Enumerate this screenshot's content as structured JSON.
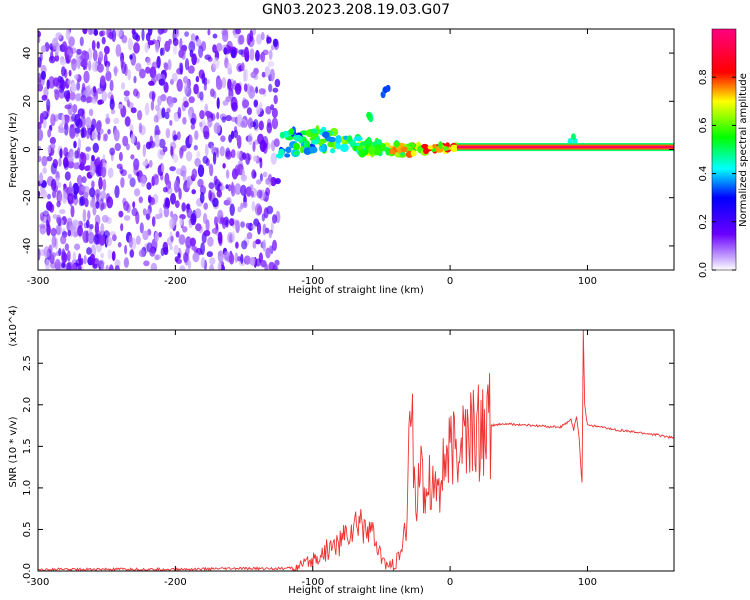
{
  "figure": {
    "title": "GN03.2023.208.19.03.G07"
  },
  "chart_data": [
    {
      "type": "heatmap",
      "xlabel": "Height of straight line (km)",
      "ylabel": "Frequency (Hz)",
      "xlim": [
        -300,
        163
      ],
      "ylim": [
        -50,
        50
      ],
      "xticks": [
        -300,
        -200,
        -100,
        0,
        100
      ],
      "yticks": [
        -40,
        -20,
        0,
        20,
        40
      ],
      "grid": false,
      "colorbar": {
        "label": "Normalized spectral amplitude",
        "range": [
          0,
          1
        ],
        "ticks": [
          "0.0",
          "0.2",
          "0.4",
          "0.6",
          "0.8"
        ],
        "colormap": "rainbow (violet-blue-cyan-green-yellow-red-magenta)"
      },
      "regions": [
        {
          "x": [
            -300,
            -125
          ],
          "description_level": 0.15,
          "character": "broadband noise, scattered speckles"
        },
        {
          "x": [
            -125,
            5
          ],
          "freq_center": [
            -5,
            8
          ],
          "level": 0.4
        },
        {
          "x": [
            5,
            163
          ],
          "freq_center": 1,
          "level": 0.95
        }
      ],
      "features": [
        {
          "x": -60,
          "freq": 15,
          "level": 0.45
        },
        {
          "x": -48,
          "freq": 23,
          "level": 0.3
        },
        {
          "x": 88,
          "freq": 3,
          "level": 0.4
        }
      ]
    },
    {
      "type": "line",
      "xlabel": "Height of straight line (km)",
      "ylabel": "SNR (10 * v/v)",
      "y_multiplier": "(x10^4)",
      "xlim": [
        -300,
        163
      ],
      "ylim": [
        0,
        2.9
      ],
      "xticks": [
        -300,
        -200,
        -100,
        0,
        100
      ],
      "yticks": [
        "0.0",
        "0.5",
        "1.0",
        "1.5",
        "2.0",
        "2.5"
      ],
      "color": "#ee3333",
      "grid": false,
      "series": [
        {
          "x": [
            -300,
            -250,
            -200,
            -150,
            -120,
            -110,
            -100,
            -90,
            -80,
            -75,
            -70,
            -65,
            -60,
            -55,
            -50,
            -45,
            -40,
            -35,
            -32,
            -30,
            -28,
            -26,
            -25,
            -23,
            -20,
            -15,
            -10,
            -5,
            0,
            5,
            10,
            15,
            20,
            25,
            30,
            40,
            50,
            60,
            70,
            80,
            85,
            88,
            90,
            92,
            94,
            95,
            96,
            97,
            98,
            100,
            110,
            120,
            130,
            140,
            150,
            163
          ],
          "y": [
            0.02,
            0.02,
            0.02,
            0.03,
            0.03,
            0.05,
            0.12,
            0.25,
            0.35,
            0.45,
            0.5,
            0.6,
            0.55,
            0.35,
            0.15,
            0.05,
            0.08,
            0.25,
            0.5,
            1.4,
            2.3,
            1.0,
            0.8,
            1.3,
            1.0,
            1.15,
            1.0,
            1.25,
            1.35,
            1.5,
            1.6,
            1.65,
            1.68,
            1.72,
            1.75,
            1.77,
            1.76,
            1.75,
            1.74,
            1.73,
            1.78,
            1.82,
            1.7,
            1.85,
            1.6,
            1.3,
            1.05,
            2.9,
            2.0,
            1.76,
            1.73,
            1.7,
            1.68,
            1.66,
            1.64,
            1.6
          ]
        }
      ]
    }
  ]
}
